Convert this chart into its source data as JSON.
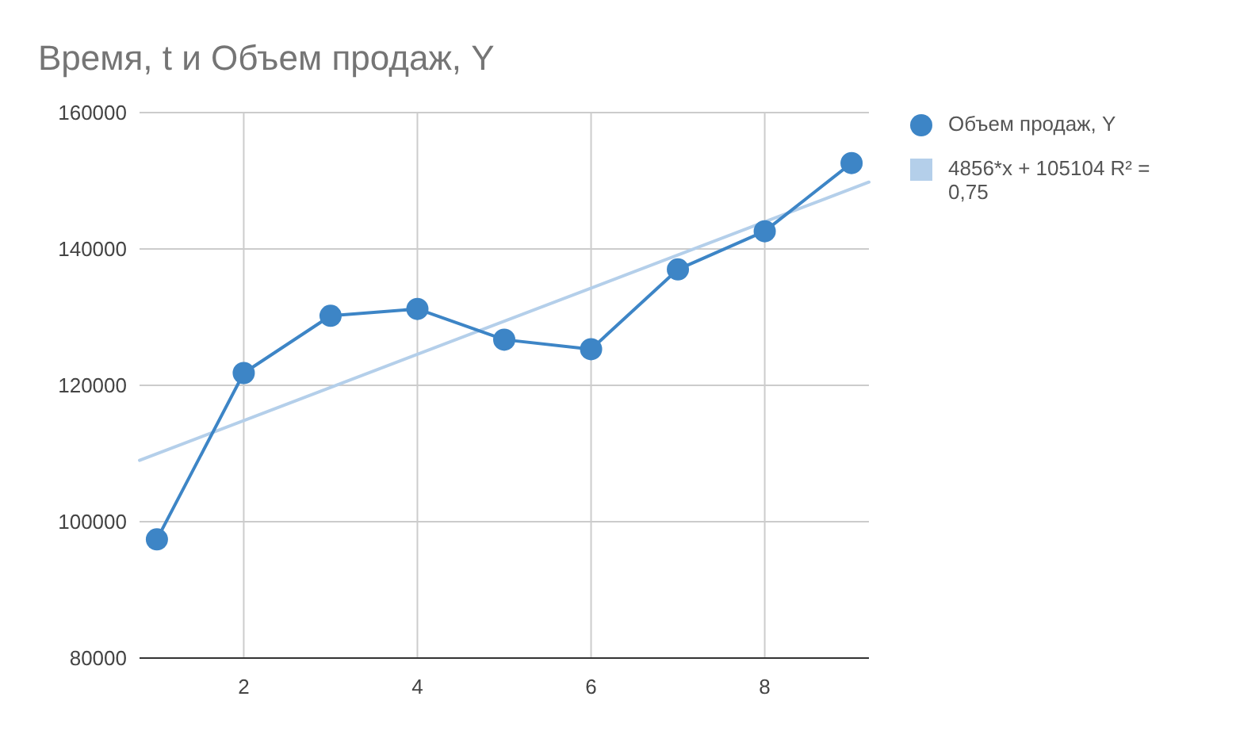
{
  "chart_data": {
    "type": "line",
    "title": "Время, t и Объем продаж, Y",
    "x": [
      1,
      2,
      3,
      4,
      5,
      6,
      7,
      8,
      9
    ],
    "series": [
      {
        "name": "Объем продаж, Y",
        "color": "#3d85c6",
        "marker": "circle",
        "values": [
          97400,
          121800,
          130200,
          131200,
          126700,
          125300,
          137000,
          142600,
          152600
        ]
      },
      {
        "name": "4856*x + 105104 R² = 0,75",
        "color": "#b4cfea",
        "marker": "none",
        "x": [
          0.8,
          9.2
        ],
        "values": [
          109000,
          149800
        ]
      }
    ],
    "xlim": [
      0.8,
      9.2
    ],
    "xticks": [
      2,
      4,
      6,
      8
    ],
    "ylim": [
      80000,
      160000
    ],
    "yticks": [
      80000,
      100000,
      120000,
      140000,
      160000
    ],
    "grid": true,
    "legend": "right"
  }
}
